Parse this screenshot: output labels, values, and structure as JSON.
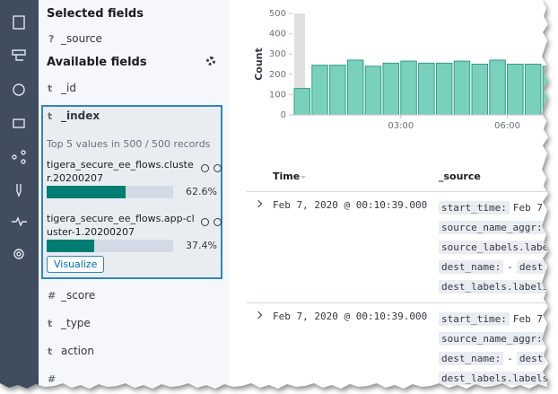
{
  "fields_panel": {
    "selected_title": "Selected fields",
    "selected": [
      {
        "type": "?",
        "name": "_source"
      }
    ],
    "available_title": "Available fields",
    "available": [
      {
        "type": "t",
        "name": "_id"
      },
      {
        "type": "t",
        "name": "_index"
      },
      {
        "type": "#",
        "name": "_score"
      },
      {
        "type": "t",
        "name": "_type"
      },
      {
        "type": "t",
        "name": "action"
      },
      {
        "type": "#",
        "name": ""
      }
    ]
  },
  "index_details": {
    "summary": "Top 5 values in 500 / 500 records",
    "values": [
      {
        "label": "tigera_secure_ee_flows.cluster.20200207",
        "percent": 62.6,
        "percent_label": "62.6%"
      },
      {
        "label": "tigera_secure_ee_flows.app-cluster-1.20200207",
        "percent": 37.4,
        "percent_label": "37.4%"
      }
    ],
    "button": "Visualize"
  },
  "chart_data": {
    "type": "bar",
    "ylabel": "Count",
    "categories": [
      null,
      null,
      null,
      null,
      null,
      null,
      "03:00",
      null,
      null,
      null,
      null,
      null,
      "06:00",
      null,
      null
    ],
    "values": [
      130,
      245,
      245,
      270,
      240,
      255,
      265,
      255,
      255,
      265,
      250,
      270,
      250,
      250,
      240
    ],
    "color": "#79d1bd",
    "ylim": [
      0,
      500
    ],
    "yticks": [
      0,
      100,
      200,
      300,
      400,
      500
    ]
  },
  "table": {
    "headers": [
      "Time",
      "_source"
    ],
    "rows": [
      {
        "time": "Feb 7, 2020 @ 00:10:39.000",
        "source": [
          [
            {
              "key": "start_time:",
              "value": "Feb 7"
            }
          ],
          [
            {
              "key": "source_name_aggr:",
              "value": "-"
            }
          ],
          [
            {
              "key": "source_labels.labels"
            }
          ],
          [
            {
              "key": "dest_name:",
              "value": "-"
            },
            {
              "key": "dest"
            }
          ],
          [
            {
              "key": "dest_labels.labels"
            }
          ]
        ]
      },
      {
        "time": "Feb 7, 2020 @ 00:10:39.000",
        "source": [
          [
            {
              "key": "start_time:",
              "value": "Feb 7"
            }
          ],
          [
            {
              "key": "source_name_aggr:",
              "value": "-"
            }
          ],
          [
            {
              "key": "dest_name:",
              "value": "-"
            },
            {
              "key": "dest"
            }
          ],
          [
            {
              "key": "dest_labels.labels"
            }
          ]
        ]
      }
    ]
  }
}
